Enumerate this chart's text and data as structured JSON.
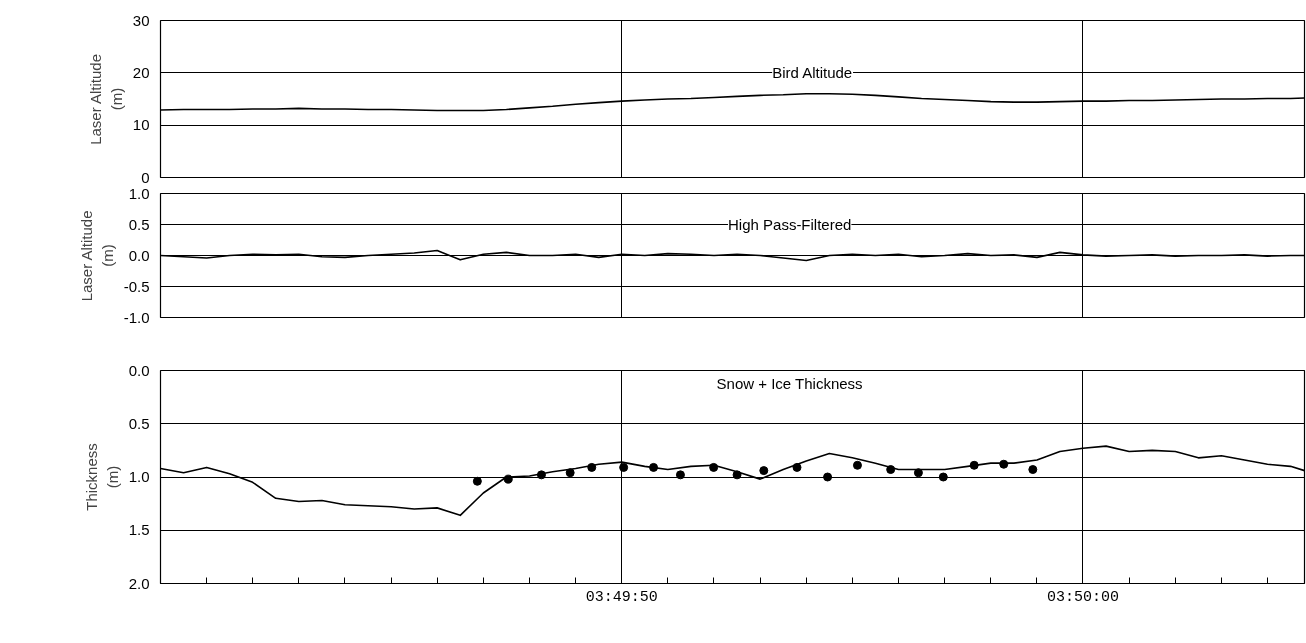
{
  "chart_data": [
    {
      "type": "line",
      "title": "Bird Altitude",
      "ylabel": "Laser Altitude\n(m)",
      "xlim": [
        3.827778,
        3.834667
      ],
      "ylim": [
        0,
        30
      ],
      "yticks": [
        0,
        10,
        20,
        30
      ],
      "grid": true,
      "tick_labels": "y",
      "xticks": [
        {
          "value": 3.830556,
          "label": null
        },
        {
          "value": 3.833333,
          "label": null
        }
      ],
      "x": [
        3.827778,
        3.827917,
        3.828056,
        3.828194,
        3.828333,
        3.828472,
        3.828611,
        3.82875,
        3.828889,
        3.829028,
        3.829167,
        3.829306,
        3.829444,
        3.829583,
        3.829722,
        3.829861,
        3.83,
        3.830139,
        3.830278,
        3.830417,
        3.830556,
        3.830694,
        3.830833,
        3.830972,
        3.831111,
        3.83125,
        3.831389,
        3.831528,
        3.831667,
        3.831806,
        3.831944,
        3.832083,
        3.832222,
        3.832361,
        3.8325,
        3.832639,
        3.832778,
        3.832917,
        3.833056,
        3.833194,
        3.833333,
        3.833472,
        3.833611,
        3.83375,
        3.833889,
        3.834028,
        3.834167,
        3.834306,
        3.834444,
        3.834583,
        3.834667
      ],
      "series": [
        {
          "color": "#000000",
          "values": [
            12.9,
            13.0,
            13.0,
            13.0,
            13.1,
            13.1,
            13.2,
            13.1,
            13.1,
            13.0,
            13.0,
            12.9,
            12.8,
            12.8,
            12.8,
            13.0,
            13.3,
            13.6,
            14.0,
            14.3,
            14.6,
            14.8,
            15.0,
            15.1,
            15.3,
            15.5,
            15.7,
            15.8,
            16.0,
            16.0,
            15.9,
            15.7,
            15.4,
            15.1,
            14.9,
            14.7,
            14.5,
            14.4,
            14.4,
            14.5,
            14.6,
            14.6,
            14.7,
            14.7,
            14.8,
            14.9,
            15.0,
            15.0,
            15.1,
            15.1,
            15.2
          ]
        }
      ]
    },
    {
      "type": "line",
      "title": "High Pass-Filtered",
      "ylabel": "Laser Altitude\n(m)",
      "xlim": [
        3.827778,
        3.834667
      ],
      "ylim": [
        -1.0,
        1.0
      ],
      "yticks": [
        {
          "value": -1.0,
          "label": "-1.0"
        },
        {
          "value": -0.5,
          "label": "-0.5"
        },
        {
          "value": 0.0,
          "label": "0.0"
        },
        {
          "value": 0.5,
          "label": "0.5"
        },
        {
          "value": 1.0,
          "label": "1.0"
        }
      ],
      "grid": true,
      "tick_labels": "y",
      "xticks": [
        {
          "value": 3.830556,
          "label": null
        },
        {
          "value": 3.833333,
          "label": null
        }
      ],
      "x": [
        3.827778,
        3.827917,
        3.828056,
        3.828194,
        3.828333,
        3.828472,
        3.828611,
        3.82875,
        3.828889,
        3.829028,
        3.829167,
        3.829306,
        3.829444,
        3.829583,
        3.829722,
        3.829861,
        3.83,
        3.830139,
        3.830278,
        3.830417,
        3.830556,
        3.830694,
        3.830833,
        3.830972,
        3.831111,
        3.83125,
        3.831389,
        3.831528,
        3.831667,
        3.831806,
        3.831944,
        3.832083,
        3.832222,
        3.832361,
        3.8325,
        3.832639,
        3.832778,
        3.832917,
        3.833056,
        3.833194,
        3.833333,
        3.833472,
        3.833611,
        3.83375,
        3.833889,
        3.834028,
        3.834167,
        3.834306,
        3.834444,
        3.834583,
        3.834667
      ],
      "series": [
        {
          "color": "#000000",
          "values": [
            0.0,
            -0.02,
            -0.04,
            0.0,
            0.02,
            0.01,
            0.02,
            -0.02,
            -0.03,
            0.0,
            0.02,
            0.04,
            0.08,
            -0.07,
            0.02,
            0.05,
            0.0,
            0.0,
            0.02,
            -0.03,
            0.02,
            0.0,
            0.03,
            0.02,
            0.0,
            0.02,
            0.0,
            -0.04,
            -0.08,
            0.0,
            0.02,
            0.0,
            0.02,
            -0.02,
            0.0,
            0.03,
            0.0,
            0.01,
            -0.03,
            0.05,
            0.01,
            -0.01,
            0.0,
            0.01,
            -0.01,
            0.0,
            0.0,
            0.01,
            -0.01,
            0.0,
            0.0
          ]
        }
      ]
    },
    {
      "type": "line",
      "title": "Snow + Ice Thickness",
      "ylabel": "Thickness\n(m)",
      "xlim": [
        3.827778,
        3.834667
      ],
      "ylim": [
        2.0,
        0.0
      ],
      "yticks": [
        {
          "value": 0.0,
          "label": "0.0"
        },
        {
          "value": 0.5,
          "label": "0.5"
        },
        {
          "value": 1.0,
          "label": "1.0"
        },
        {
          "value": 1.5,
          "label": "1.5"
        },
        {
          "value": 2.0,
          "label": "2.0"
        }
      ],
      "grid": true,
      "xticks": [
        {
          "value": 3.828056,
          "label": null
        },
        {
          "value": 3.828333,
          "label": null
        },
        {
          "value": 3.828611,
          "label": null
        },
        {
          "value": 3.828889,
          "label": null
        },
        {
          "value": 3.829167,
          "label": null
        },
        {
          "value": 3.829444,
          "label": null
        },
        {
          "value": 3.829722,
          "label": null
        },
        {
          "value": 3.83,
          "label": null
        },
        {
          "value": 3.830278,
          "label": null
        },
        {
          "value": 3.830556,
          "label": "03:49:50"
        },
        {
          "value": 3.830833,
          "label": null
        },
        {
          "value": 3.831111,
          "label": null
        },
        {
          "value": 3.831389,
          "label": null
        },
        {
          "value": 3.831667,
          "label": null
        },
        {
          "value": 3.831944,
          "label": null
        },
        {
          "value": 3.832222,
          "label": null
        },
        {
          "value": 3.8325,
          "label": null
        },
        {
          "value": 3.832778,
          "label": null
        },
        {
          "value": 3.833056,
          "label": null
        },
        {
          "value": 3.833333,
          "label": "03:50:00"
        },
        {
          "value": 3.833611,
          "label": null
        },
        {
          "value": 3.833889,
          "label": null
        },
        {
          "value": 3.834167,
          "label": null
        },
        {
          "value": 3.834444,
          "label": null
        }
      ],
      "x": [
        3.827778,
        3.827917,
        3.828056,
        3.828194,
        3.828333,
        3.828472,
        3.828611,
        3.82875,
        3.828889,
        3.829028,
        3.829167,
        3.829306,
        3.829444,
        3.829583,
        3.829722,
        3.829861,
        3.83,
        3.830139,
        3.830278,
        3.830417,
        3.830556,
        3.830694,
        3.830833,
        3.830972,
        3.831111,
        3.83125,
        3.831389,
        3.831528,
        3.831667,
        3.831806,
        3.831944,
        3.832083,
        3.832222,
        3.832361,
        3.8325,
        3.832639,
        3.832778,
        3.832917,
        3.833056,
        3.833194,
        3.833333,
        3.833472,
        3.833611,
        3.83375,
        3.833889,
        3.834028,
        3.834167,
        3.834306,
        3.834444,
        3.834583,
        3.834667
      ],
      "series": [
        {
          "color": "#000000",
          "values": [
            0.92,
            0.96,
            0.91,
            0.97,
            1.05,
            1.2,
            1.23,
            1.22,
            1.26,
            1.27,
            1.28,
            1.3,
            1.29,
            1.36,
            1.15,
            1.0,
            0.99,
            0.95,
            0.92,
            0.88,
            0.86,
            0.9,
            0.93,
            0.9,
            0.89,
            0.95,
            1.02,
            0.93,
            0.85,
            0.78,
            0.82,
            0.87,
            0.93,
            0.93,
            0.93,
            0.9,
            0.87,
            0.87,
            0.84,
            0.76,
            0.73,
            0.71,
            0.76,
            0.75,
            0.76,
            0.82,
            0.8,
            0.84,
            0.88,
            0.9,
            0.94
          ]
        },
        {
          "type": "scatter",
          "marker": "circle",
          "color": "#000000",
          "x": [
            3.829686,
            3.829872,
            3.830072,
            3.830245,
            3.830375,
            3.830567,
            3.830747,
            3.830909,
            3.831109,
            3.83125,
            3.831411,
            3.831611,
            3.831795,
            3.831975,
            3.832175,
            3.832342,
            3.832492,
            3.832678,
            3.832856,
            3.833031
          ],
          "values": [
            1.04,
            1.02,
            0.98,
            0.96,
            0.91,
            0.91,
            0.91,
            0.98,
            0.91,
            0.98,
            0.94,
            0.91,
            1.0,
            0.89,
            0.93,
            0.96,
            1.0,
            0.89,
            0.88,
            0.93
          ]
        }
      ]
    }
  ]
}
